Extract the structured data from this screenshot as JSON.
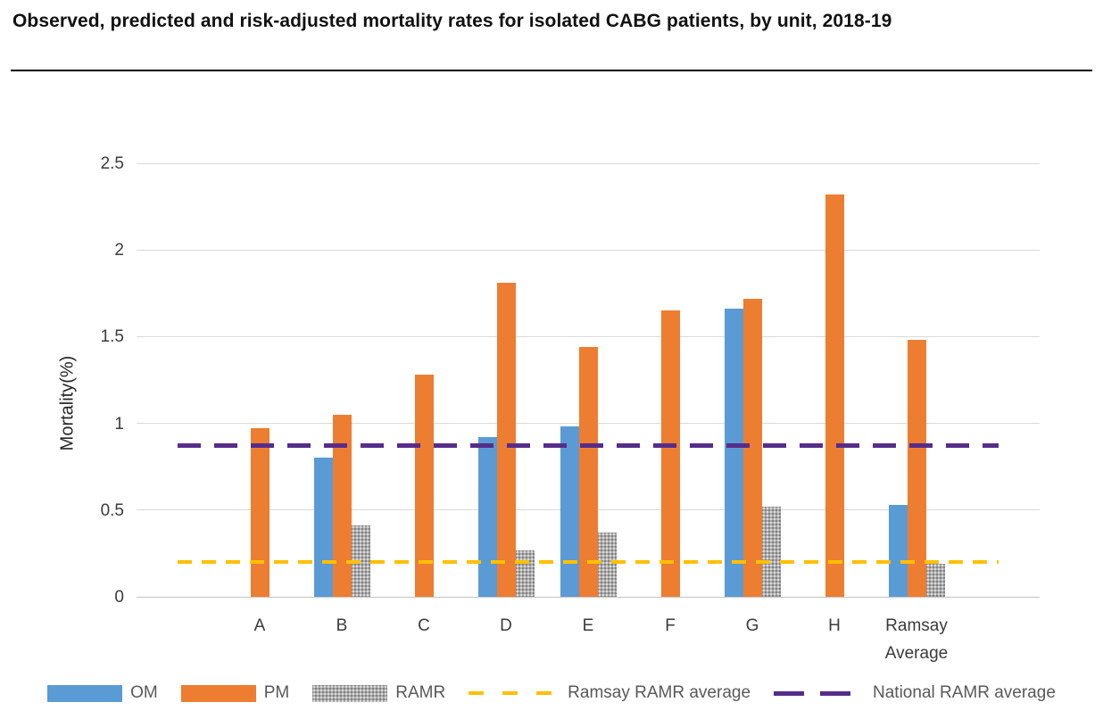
{
  "page": {
    "title": "Observed, predicted and risk-adjusted mortality rates for isolated CABG patients, by unit, 2018-19"
  },
  "chart_data": {
    "type": "bar",
    "title": "Observed, predicted and risk-adjusted mortality rates for isolated CABG patients, by unit, 2018-19",
    "xlabel": "",
    "ylabel": "Mortality(%)",
    "ylim": [
      0,
      2.5
    ],
    "ytick_labels": [
      "0",
      "0.5",
      "1",
      "1.5",
      "2",
      "2.5"
    ],
    "ytick_values": [
      0,
      0.5,
      1,
      1.5,
      2,
      2.5
    ],
    "grid": true,
    "legend_position": "bottom",
    "categories": [
      "A",
      "B",
      "C",
      "D",
      "E",
      "F",
      "G",
      "H",
      "Ramsay Average"
    ],
    "series": [
      {
        "name": "OM",
        "color": "#5B9BD5",
        "pattern": "solid",
        "values": [
          null,
          0.8,
          null,
          0.92,
          0.98,
          null,
          1.66,
          null,
          0.53
        ]
      },
      {
        "name": "PM",
        "color": "#ED7D31",
        "pattern": "solid",
        "values": [
          0.97,
          1.05,
          1.28,
          1.81,
          1.44,
          1.65,
          1.72,
          2.32,
          1.48
        ]
      },
      {
        "name": "RAMR",
        "color": "#ADADAD",
        "pattern": "dots",
        "values": [
          null,
          0.41,
          null,
          0.27,
          0.37,
          null,
          0.52,
          null,
          0.19
        ]
      }
    ],
    "ref_lines": [
      {
        "name": "Ramsay RAMR average",
        "color": "#FFC000",
        "value": 0.2,
        "dash": "short"
      },
      {
        "name": "National RAMR average",
        "color": "#572C8A",
        "value": 0.87,
        "dash": "long"
      }
    ]
  }
}
